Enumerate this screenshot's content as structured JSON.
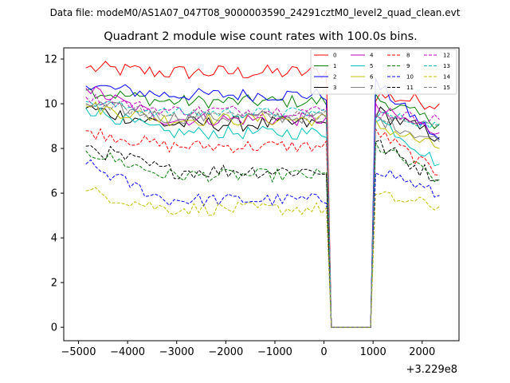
{
  "chart_data": {
    "type": "line",
    "suptitle": "Data file: modeM0/AS1A07_047T08_9000003590_24291cztM0_level2_quad_clean.evt",
    "title": "Quadrant 2 module wise count rates with 100.0s bins.",
    "xlabel": "",
    "ylabel": "",
    "x_offset_label": "+3.229e8",
    "xlim": [
      -5300,
      2750
    ],
    "ylim": [
      -0.6,
      12.5
    ],
    "xticks": [
      -5000,
      -4000,
      -3000,
      -2000,
      -1000,
      0,
      1000,
      2000
    ],
    "xtick_labels": [
      "−5000",
      "−4000",
      "−3000",
      "−2000",
      "−1000",
      "0",
      "1000",
      "2000"
    ],
    "yticks": [
      0,
      2,
      4,
      6,
      8,
      10,
      12
    ],
    "ytick_labels": [
      "0",
      "2",
      "4",
      "6",
      "8",
      "10",
      "12"
    ],
    "grid": false,
    "legend_position": "upper-right",
    "legend_columns": 4,
    "x_start": -4850,
    "x_step": 100,
    "x_end": 2350,
    "gap_start": 0,
    "gap_end": 1000,
    "series": [
      {
        "name": "0",
        "color": "#ff0000",
        "dashed": false,
        "base": 11.4,
        "start": 11.6,
        "noise": 0.35,
        "before_gap": 10.3,
        "after_gap": 10.4,
        "end": 10.0
      },
      {
        "name": "1",
        "color": "#008000",
        "dashed": false,
        "base": 10.1,
        "start": 10.6,
        "noise": 0.3,
        "before_gap": 10.2,
        "after_gap": 10.3,
        "end": 9.1
      },
      {
        "name": "2",
        "color": "#0000ff",
        "dashed": false,
        "base": 10.4,
        "start": 10.8,
        "noise": 0.3,
        "before_gap": 10.5,
        "after_gap": 11.0,
        "end": 8.4
      },
      {
        "name": "3",
        "color": "#000000",
        "dashed": false,
        "base": 9.1,
        "start": 9.8,
        "noise": 0.35,
        "before_gap": 9.6,
        "after_gap": 9.7,
        "end": 8.5
      },
      {
        "name": "4",
        "color": "#bf00bf",
        "dashed": false,
        "base": 9.3,
        "start": 10.7,
        "noise": 0.3,
        "before_gap": 9.6,
        "after_gap": 9.8,
        "end": 8.7
      },
      {
        "name": "5",
        "color": "#00bfbf",
        "dashed": false,
        "base": 8.7,
        "start": 9.8,
        "noise": 0.3,
        "before_gap": 9.1,
        "after_gap": 9.5,
        "end": 7.3
      },
      {
        "name": "6",
        "color": "#bfbf00",
        "dashed": false,
        "base": 9.3,
        "start": 9.9,
        "noise": 0.3,
        "before_gap": 9.4,
        "after_gap": 9.1,
        "end": 8.0
      },
      {
        "name": "7",
        "color": "#808080",
        "dashed": false,
        "base": 9.4,
        "start": 10.0,
        "noise": 0.3,
        "before_gap": 9.5,
        "after_gap": 9.4,
        "end": 8.3
      },
      {
        "name": "8",
        "color": "#ff0000",
        "dashed": true,
        "base": 8.1,
        "start": 8.8,
        "noise": 0.3,
        "before_gap": 8.4,
        "after_gap": 8.9,
        "end": 6.8
      },
      {
        "name": "9",
        "color": "#008000",
        "dashed": true,
        "base": 6.8,
        "start": 7.9,
        "noise": 0.3,
        "before_gap": 7.0,
        "after_gap": 8.2,
        "end": 6.6
      },
      {
        "name": "10",
        "color": "#0000ff",
        "dashed": true,
        "base": 5.7,
        "start": 7.3,
        "noise": 0.3,
        "before_gap": 5.8,
        "after_gap": 7.2,
        "end": 5.9
      },
      {
        "name": "11",
        "color": "#000000",
        "dashed": true,
        "base": 7.0,
        "start": 8.1,
        "noise": 0.35,
        "before_gap": 7.7,
        "after_gap": 8.3,
        "end": 6.6
      },
      {
        "name": "12",
        "color": "#bf00bf",
        "dashed": true,
        "base": 9.7,
        "start": 10.3,
        "noise": 0.25,
        "before_gap": 9.8,
        "after_gap": 9.6,
        "end": 9.3
      },
      {
        "name": "13",
        "color": "#00bfbf",
        "dashed": true,
        "base": 9.6,
        "start": 10.1,
        "noise": 0.25,
        "before_gap": 9.7,
        "after_gap": 9.6,
        "end": 9.0
      },
      {
        "name": "14",
        "color": "#bfbf00",
        "dashed": true,
        "base": 5.3,
        "start": 6.1,
        "noise": 0.3,
        "before_gap": 5.6,
        "after_gap": 5.9,
        "end": 5.4
      },
      {
        "name": "15",
        "color": "#808080",
        "dashed": true,
        "base": 9.5,
        "start": 10.0,
        "noise": 0.25,
        "before_gap": 9.6,
        "after_gap": 9.4,
        "end": 9.0
      }
    ]
  }
}
